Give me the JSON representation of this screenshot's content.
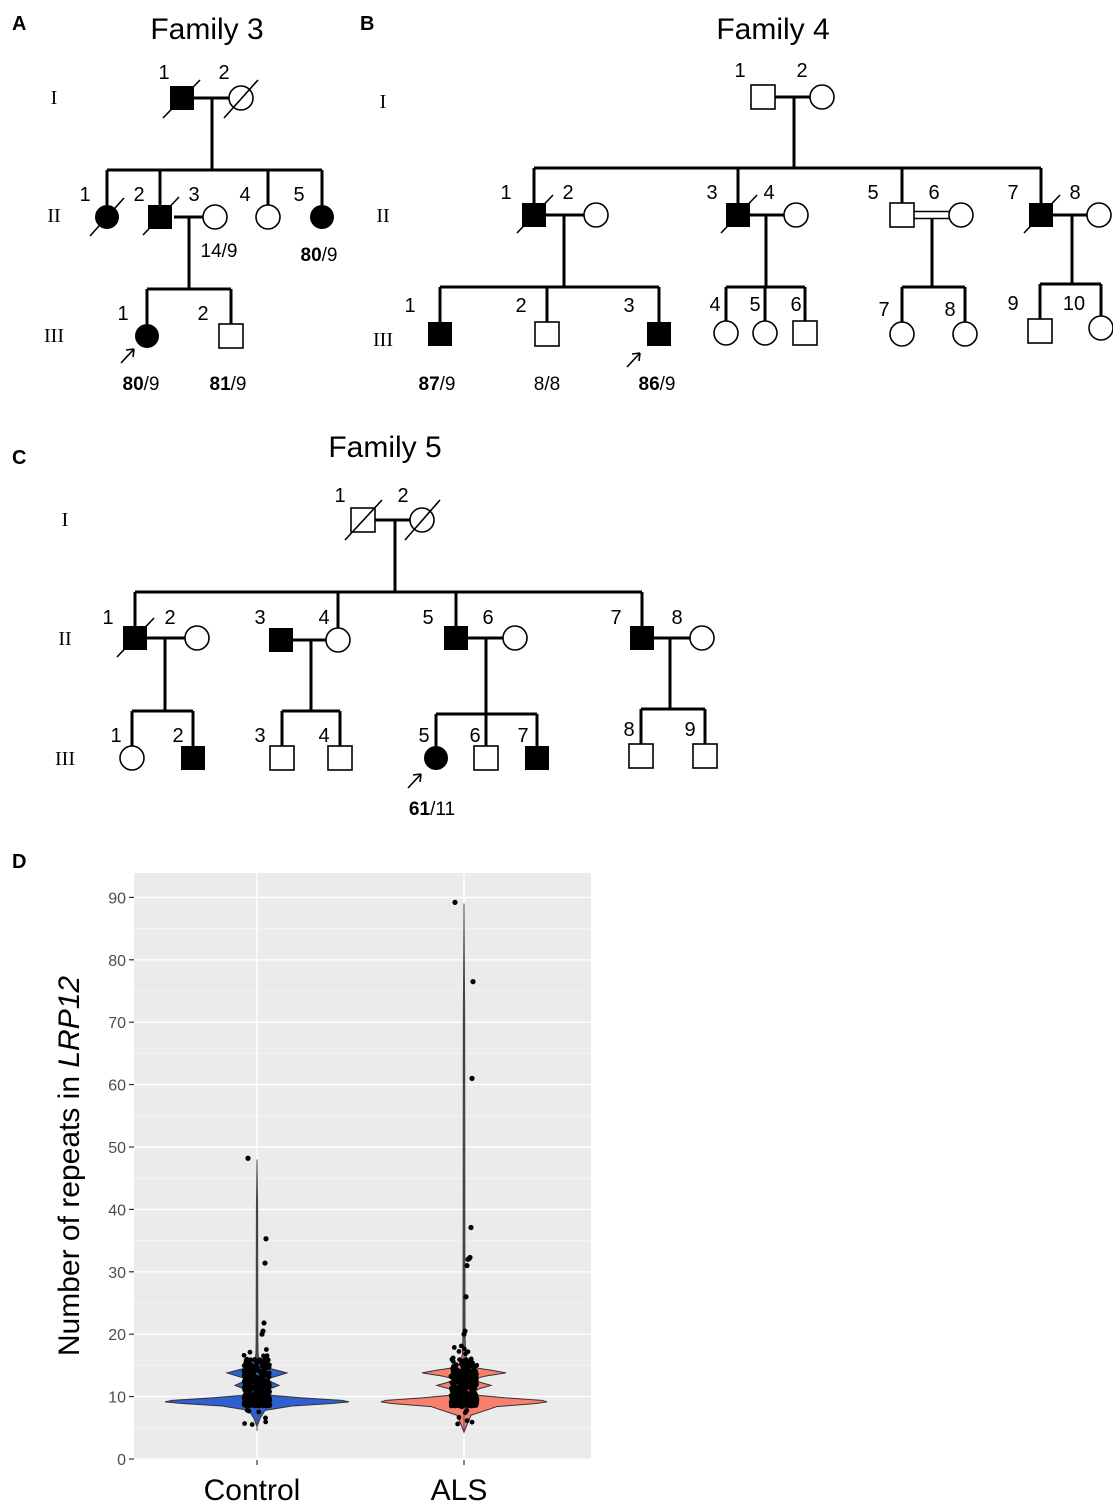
{
  "panels": {
    "A": {
      "letter": "A",
      "title": "Family 3"
    },
    "B": {
      "letter": "B",
      "title": "Family 4"
    },
    "C": {
      "letter": "C",
      "title": "Family 5"
    },
    "D": {
      "letter": "D"
    }
  },
  "generations": [
    "I",
    "II",
    "III"
  ],
  "family3": {
    "I": [
      "1",
      "2"
    ],
    "II": [
      "1",
      "2",
      "3",
      "4",
      "5"
    ],
    "III": [
      "1",
      "2"
    ],
    "genotypes": {
      "II3": {
        "bold": "",
        "rest": "14/9"
      },
      "II5": {
        "bold": "80",
        "rest": "/9"
      },
      "III1": {
        "bold": "80",
        "rest": "/9"
      },
      "III2": {
        "bold": "81",
        "rest": "/9"
      }
    }
  },
  "family4": {
    "I": [
      "1",
      "2"
    ],
    "II": [
      "1",
      "2",
      "3",
      "4",
      "5",
      "6",
      "7",
      "8"
    ],
    "III": [
      "1",
      "2",
      "3",
      "4",
      "5",
      "6",
      "7",
      "8",
      "9",
      "10"
    ],
    "genotypes": {
      "III1": {
        "bold": "87",
        "rest": "/9"
      },
      "III2": {
        "bold": "",
        "rest": "8/8"
      },
      "III3": {
        "bold": "86",
        "rest": "/9"
      }
    }
  },
  "family5": {
    "I": [
      "1",
      "2"
    ],
    "II": [
      "1",
      "2",
      "3",
      "4",
      "5",
      "6",
      "7",
      "8"
    ],
    "III": [
      "1",
      "2",
      "3",
      "4",
      "5",
      "6",
      "7",
      "8",
      "9"
    ],
    "genotypes": {
      "III5": {
        "bold": "61",
        "rest": "/11"
      }
    }
  },
  "chart_data": {
    "type": "violin",
    "categories": [
      "Control",
      "ALS"
    ],
    "ylabel_prefix": "Number of repeats in ",
    "ylabel_gene": "LRP12",
    "ylim": [
      0,
      90
    ],
    "yticks": [
      0,
      10,
      20,
      30,
      40,
      50,
      60,
      70,
      80,
      90
    ],
    "grid": true,
    "series_colors": {
      "Control": "#2f5fd0",
      "ALS": "#f7806f"
    },
    "panel_background": "#ebebeb",
    "outliers": {
      "Control": [
        48.2,
        35.3,
        31.4,
        21.8,
        20.5,
        20.0
      ],
      "ALS": [
        89.2,
        76.5,
        61.0,
        37.1,
        32.3,
        32.1,
        32.0,
        31.0,
        26.0,
        20.5,
        20.0
      ]
    },
    "max": {
      "Control": 48.0,
      "ALS": 89.0
    }
  }
}
